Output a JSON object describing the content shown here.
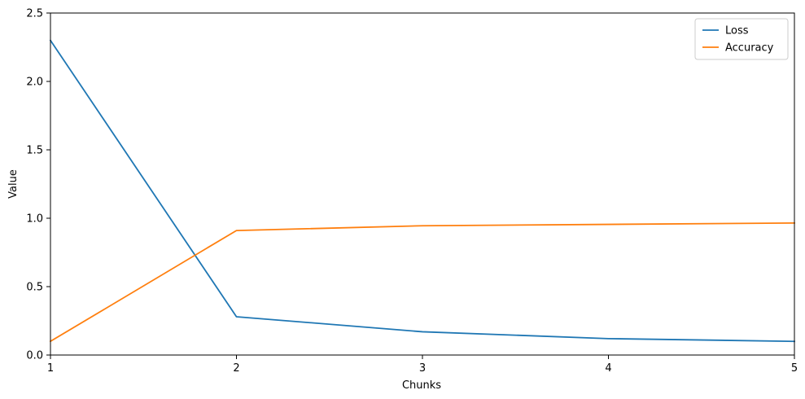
{
  "chart_data": {
    "type": "line",
    "x": [
      1,
      2,
      3,
      4,
      5
    ],
    "series": [
      {
        "name": "Loss",
        "values": [
          2.3,
          0.28,
          0.17,
          0.12,
          0.1
        ],
        "color": "#1f77b4"
      },
      {
        "name": "Accuracy",
        "values": [
          0.1,
          0.91,
          0.945,
          0.955,
          0.965
        ],
        "color": "#ff7f0e"
      }
    ],
    "xlabel": "Chunks",
    "ylabel": "Value",
    "xlim": [
      1,
      5
    ],
    "ylim": [
      0,
      2.5
    ],
    "xticks": [
      1,
      2,
      3,
      4,
      5
    ],
    "xtick_labels": [
      "1",
      "2",
      "3",
      "4",
      "5"
    ],
    "yticks": [
      0,
      0.5,
      1.0,
      1.5,
      2.0,
      2.5
    ],
    "ytick_labels": [
      "0.0",
      "0.5",
      "1.0",
      "1.5",
      "2.0",
      "2.5"
    ],
    "grid": false,
    "legend": "top-right"
  }
}
